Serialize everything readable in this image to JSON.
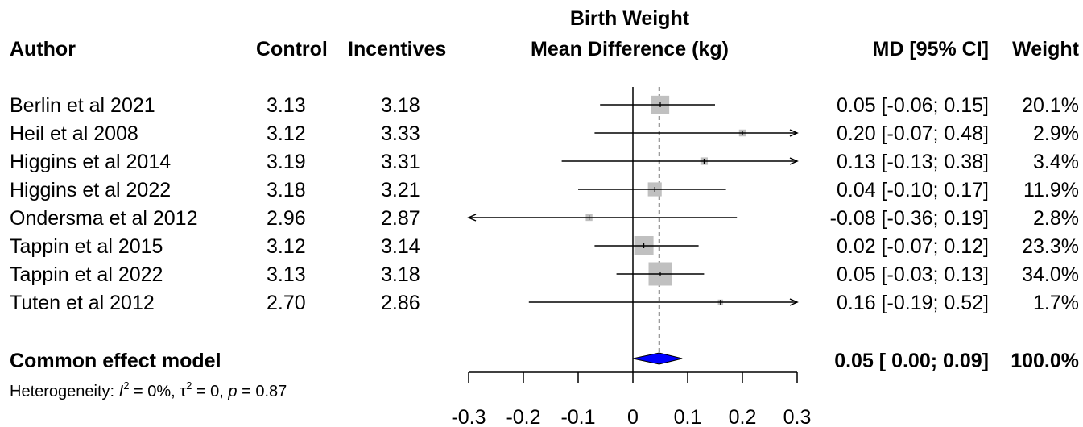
{
  "headers": {
    "author": "Author",
    "control": "Control",
    "incentives": "Incentives",
    "plot_title_line1": "Birth Weight",
    "plot_title_line2": "Mean Difference (kg)",
    "md_ci": "MD [95% CI]",
    "weight": "Weight"
  },
  "studies": [
    {
      "author": "Berlin et al 2021",
      "control": "3.13",
      "incentives": "3.18",
      "ci_text": "0.05 [-0.06; 0.15]",
      "weight_text": "20.1%"
    },
    {
      "author": "Heil et al 2008",
      "control": "3.12",
      "incentives": "3.33",
      "ci_text": "0.20 [-0.07; 0.48]",
      "weight_text": "2.9%"
    },
    {
      "author": "Higgins et al 2014",
      "control": "3.19",
      "incentives": "3.31",
      "ci_text": "0.13 [-0.13; 0.38]",
      "weight_text": "3.4%"
    },
    {
      "author": "Higgins et al 2022",
      "control": "3.18",
      "incentives": "3.21",
      "ci_text": "0.04 [-0.10; 0.17]",
      "weight_text": "11.9%"
    },
    {
      "author": "Ondersma et al 2012",
      "control": "2.96",
      "incentives": "2.87",
      "ci_text": "-0.08 [-0.36; 0.19]",
      "weight_text": "2.8%"
    },
    {
      "author": "Tappin et al 2015",
      "control": "3.12",
      "incentives": "3.14",
      "ci_text": "0.02 [-0.07; 0.12]",
      "weight_text": "23.3%"
    },
    {
      "author": "Tappin et al 2022",
      "control": "3.13",
      "incentives": "3.18",
      "ci_text": "0.05 [-0.03; 0.13]",
      "weight_text": "34.0%"
    },
    {
      "author": "Tuten et al 2012",
      "control": "2.70",
      "incentives": "2.86",
      "ci_text": "0.16 [-0.19; 0.52]",
      "weight_text": "1.7%"
    }
  ],
  "summary": {
    "label": "Common effect model",
    "ci_text": "0.05 [ 0.00; 0.09]",
    "weight_text": "100.0%"
  },
  "heterogeneity": {
    "prefix": "Heterogeneity: ",
    "i2_symbol": "I",
    "i2_value": " = 0%, ",
    "tau2_symbol": "τ",
    "tau2_value": " = 0, ",
    "p_symbol": "p",
    "p_value": " = 0.87",
    "superscript": "2"
  },
  "chart_data": {
    "type": "forest",
    "title": "Birth Weight",
    "xlabel": "Mean Difference (kg)",
    "xlim": [
      -0.3,
      0.3
    ],
    "x_ticks": [
      "-0.3",
      "-0.2",
      "-0.1",
      "0",
      "0.1",
      "0.2",
      "0.3"
    ],
    "x_tick_values": [
      -0.3,
      -0.2,
      -0.1,
      0,
      0.1,
      0.2,
      0.3
    ],
    "reference_line": 0,
    "pooled_line": 0.048,
    "points": [
      {
        "label": "Berlin et al 2021",
        "md": 0.05,
        "lower": -0.06,
        "upper": 0.15,
        "weight": 20.1
      },
      {
        "label": "Heil et al 2008",
        "md": 0.2,
        "lower": -0.07,
        "upper": 0.48,
        "weight": 2.9
      },
      {
        "label": "Higgins et al 2014",
        "md": 0.13,
        "lower": -0.13,
        "upper": 0.38,
        "weight": 3.4
      },
      {
        "label": "Higgins et al 2022",
        "md": 0.04,
        "lower": -0.1,
        "upper": 0.17,
        "weight": 11.9
      },
      {
        "label": "Ondersma et al 2012",
        "md": -0.08,
        "lower": -0.36,
        "upper": 0.19,
        "weight": 2.8
      },
      {
        "label": "Tappin et al 2015",
        "md": 0.02,
        "lower": -0.07,
        "upper": 0.12,
        "weight": 23.3
      },
      {
        "label": "Tappin et al 2022",
        "md": 0.05,
        "lower": -0.03,
        "upper": 0.13,
        "weight": 34.0
      },
      {
        "label": "Tuten et al 2012",
        "md": 0.16,
        "lower": -0.19,
        "upper": 0.52,
        "weight": 1.7
      }
    ],
    "pooled": {
      "label": "Common effect model",
      "md": 0.048,
      "lower": 0.0,
      "upper": 0.09,
      "weight": 100.0
    },
    "colors": {
      "square": "#c0c0c0",
      "diamond": "#0000ff",
      "line": "#000000"
    },
    "grid": false
  }
}
